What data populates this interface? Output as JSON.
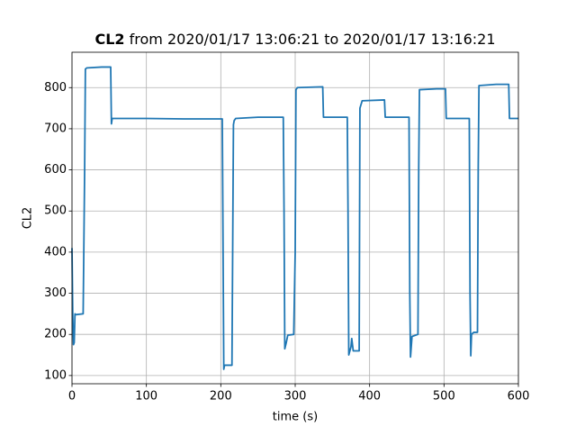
{
  "chart_data": {
    "type": "line",
    "title_name": "CL2",
    "title": "from 2020/01/17 13:06:21 to 2020/01/17 13:16:21",
    "x_label": "time (s)",
    "y_label": "CL2",
    "x": [
      0,
      1,
      2,
      3,
      4,
      5,
      15,
      17,
      18,
      20,
      40,
      52,
      53,
      54,
      55,
      100,
      150,
      202,
      204,
      205,
      215,
      217,
      218,
      220,
      250,
      284,
      285,
      286,
      288,
      290,
      298,
      300,
      301,
      303,
      337,
      338,
      370,
      371,
      372,
      375,
      376,
      378,
      386,
      387,
      390,
      420,
      421,
      453,
      454,
      455,
      457,
      465,
      466,
      467,
      490,
      502,
      503,
      534,
      535,
      536,
      537,
      540,
      545,
      546,
      547,
      570,
      587,
      588,
      600
    ],
    "series": [
      {
        "name": "CL2",
        "color": "#1f77b4",
        "values": [
          410,
          250,
          175,
          180,
          250,
          248,
          250,
          600,
          845,
          848,
          850,
          850,
          712,
          725,
          725,
          725,
          724,
          724,
          115,
          125,
          125,
          710,
          720,
          725,
          728,
          728,
          500,
          165,
          180,
          198,
          200,
          400,
          795,
          800,
          802,
          728,
          728,
          500,
          150,
          170,
          190,
          160,
          160,
          750,
          768,
          770,
          728,
          728,
          300,
          145,
          195,
          200,
          600,
          795,
          797,
          797,
          725,
          725,
          300,
          148,
          200,
          205,
          205,
          600,
          805,
          808,
          808,
          725,
          725
        ]
      }
    ],
    "xlim": [
      0,
      600
    ],
    "xticks": [
      0,
      100,
      200,
      300,
      400,
      500,
      600
    ],
    "ylim": [
      80,
      886
    ],
    "yticks": [
      100,
      200,
      300,
      400,
      500,
      600,
      700,
      800
    ],
    "grid": true
  }
}
